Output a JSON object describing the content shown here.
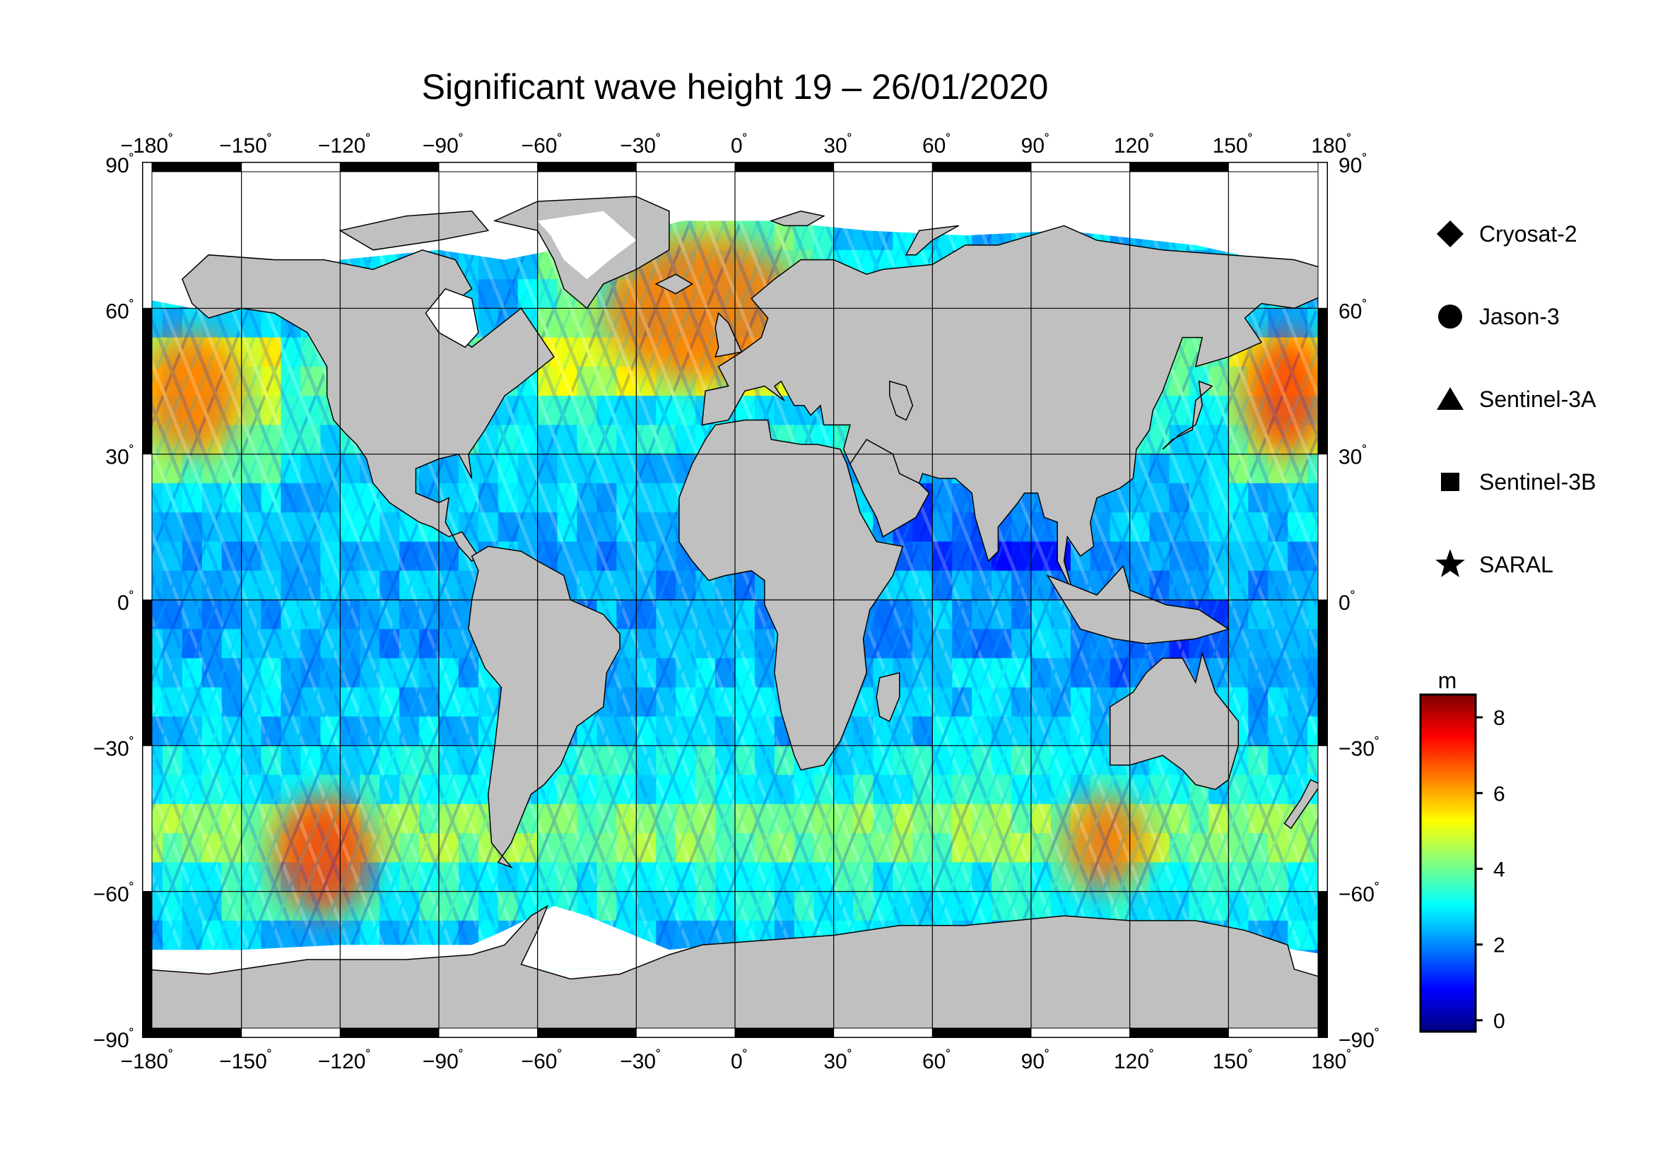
{
  "title": "Significant wave height 19 – 26/01/2020",
  "map": {
    "lon_ticks": [
      -180,
      -150,
      -120,
      -90,
      -60,
      -30,
      0,
      30,
      60,
      90,
      120,
      150,
      180
    ],
    "lat_ticks": [
      90,
      60,
      30,
      0,
      -30,
      -60,
      -90
    ],
    "degree_symbol": "˚",
    "land_color": "#c0c0c0",
    "no_data_color": "#ffffff",
    "grid": true
  },
  "legend": {
    "items": [
      {
        "label": "Cryosat-2",
        "symbol": "diamond-icon"
      },
      {
        "label": "Jason-3",
        "symbol": "circle-icon"
      },
      {
        "label": "Sentinel-3A",
        "symbol": "triangle-icon"
      },
      {
        "label": "Sentinel-3B",
        "symbol": "square-icon"
      },
      {
        "label": "SARAL",
        "symbol": "star-icon"
      }
    ]
  },
  "colorbar": {
    "unit": "m",
    "ticks": [
      8,
      6,
      4,
      2,
      0
    ],
    "range": [
      -0.3,
      8.6
    ],
    "colors": [
      "#00007f",
      "#0000ff",
      "#0080ff",
      "#00ffff",
      "#80ff80",
      "#ffff00",
      "#ff8000",
      "#ff0000",
      "#800000"
    ]
  },
  "chart_data": {
    "type": "heatmap",
    "title": "Significant wave height 19 – 26/01/2020",
    "x_range": [
      -180,
      180
    ],
    "y_range": [
      -90,
      90
    ],
    "value_unit": "m",
    "value_range": [
      0,
      8.5
    ],
    "high_wave_regions": [
      {
        "lon": [
          -180,
          -150
        ],
        "lat": [
          30,
          55
        ],
        "swh": 6.5
      },
      {
        "lon": [
          -140,
          -110
        ],
        "lat": [
          -65,
          -40
        ],
        "swh": 7.0
      },
      {
        "lon": [
          -40,
          20
        ],
        "lat": [
          45,
          75
        ],
        "swh": 6.5
      },
      {
        "lon": [
          100,
          125
        ],
        "lat": [
          -60,
          -40
        ],
        "swh": 6.5
      },
      {
        "lon": [
          155,
          180
        ],
        "lat": [
          30,
          55
        ],
        "swh": 7.0
      }
    ]
  }
}
